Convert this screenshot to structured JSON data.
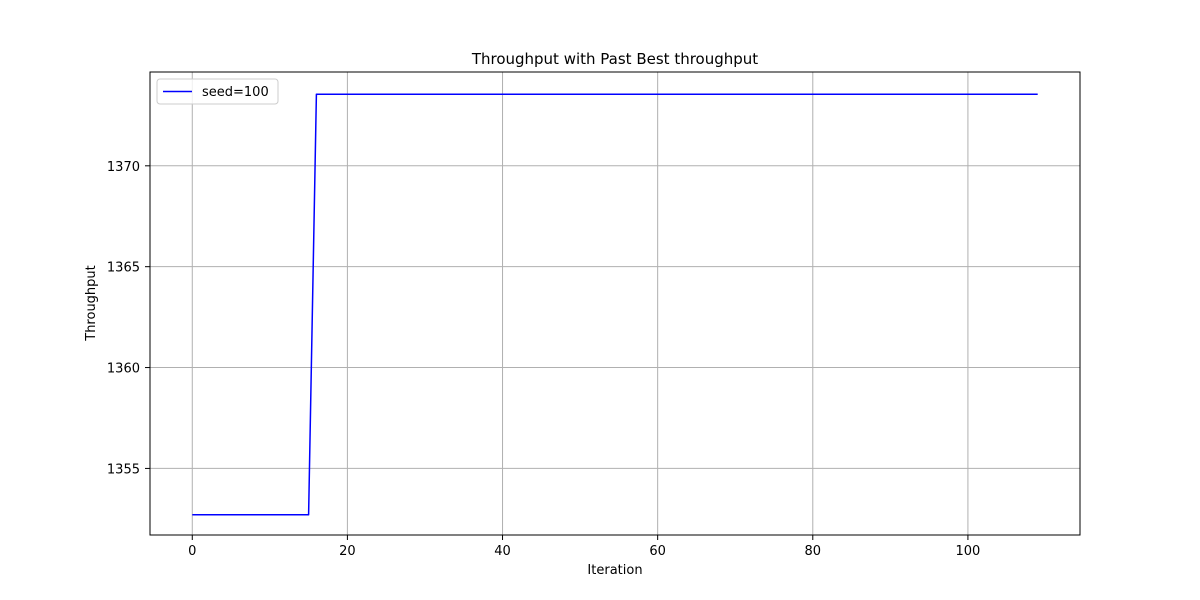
{
  "chart_data": {
    "type": "line",
    "title": "Throughput with Past Best throughput",
    "xlabel": "Iteration",
    "ylabel": "Throughput",
    "xlim": [
      -5.45,
      114.45
    ],
    "ylim": [
      1351.7,
      1374.65
    ],
    "x_ticks": [
      0,
      20,
      40,
      60,
      80,
      100
    ],
    "y_ticks": [
      1355,
      1360,
      1365,
      1370
    ],
    "grid": true,
    "legend": "top-left",
    "series": [
      {
        "name": "seed=100",
        "color": "#0000ff",
        "points": [
          [
            0,
            1352.7
          ],
          [
            15,
            1352.7
          ],
          [
            16,
            1373.55
          ],
          [
            109,
            1373.55
          ]
        ]
      }
    ]
  }
}
